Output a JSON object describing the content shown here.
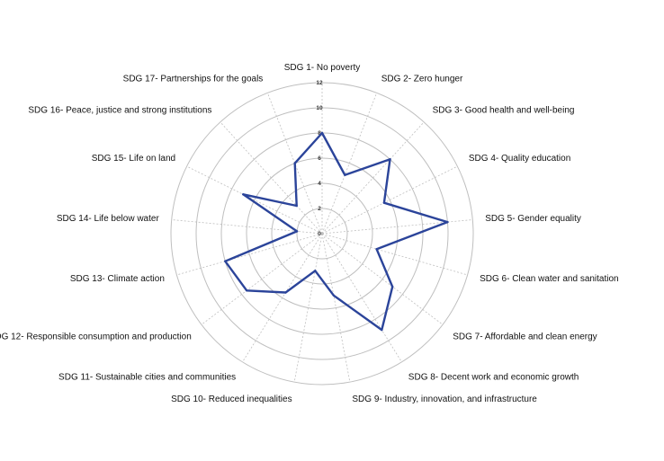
{
  "chart_data": {
    "type": "radar",
    "categories": [
      "SDG 1- No poverty",
      "SDG 2- Zero hunger",
      "SDG 3- Good health and well-being",
      "SDG 4- Quality education",
      "SDG 5- Gender equality",
      "SDG 6- Clean water and sanitation",
      "SDG 7- Affordable and clean energy",
      "SDG 8- Decent work and economic growth",
      "SDG 9- Industry, innovation, and infrastructure",
      "SDG 10- Reduced inequalities",
      "SDG 11- Sustainable cities and communities",
      "SDG 12- Responsible consumption and production",
      "SDG 13- Climate action",
      "SDG 14- Life below water",
      "SDG 15- Life on land",
      "SDG 16- Peace, justice and strong institutions",
      "SDG 17- Partnerships for the goals"
    ],
    "values": [
      8,
      5,
      8,
      5.5,
      10,
      4.5,
      7,
      9,
      5,
      3,
      5.5,
      7.5,
      8,
      2,
      7,
      3,
      6
    ],
    "rlim": [
      0,
      12
    ],
    "ticks": [
      0,
      2,
      4,
      6,
      8,
      10,
      12
    ],
    "grid": true,
    "line_color": "#2b449a",
    "grid_color": "#bfbfbf"
  }
}
